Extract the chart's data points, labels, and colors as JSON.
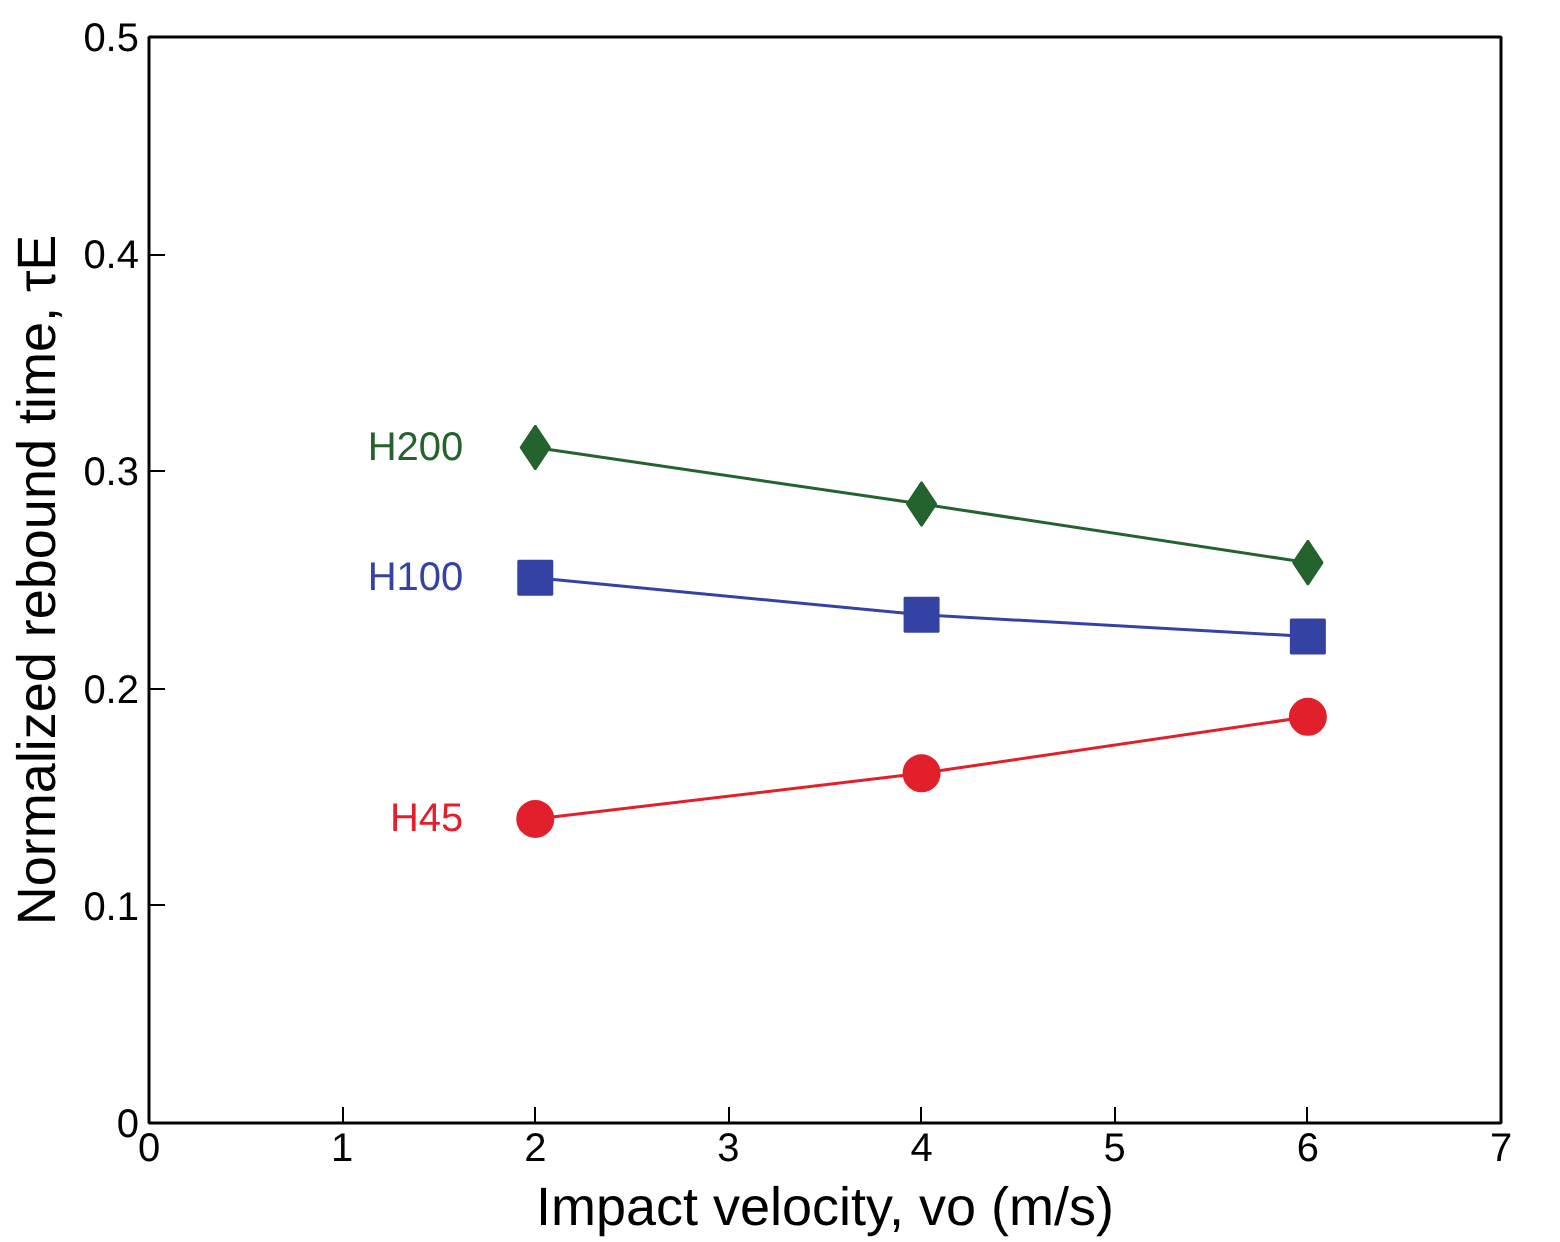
{
  "chart_data": {
    "type": "line",
    "xlabel": "Impact velocity, vo (m/s)",
    "ylabel": "Normalized rebound time, τE",
    "x": [
      2,
      4,
      6
    ],
    "series": [
      {
        "name": "H200",
        "color": "#24622e",
        "values": [
          0.311,
          0.285,
          0.258
        ],
        "marker": "diamond"
      },
      {
        "name": "H100",
        "color": "#3443a3",
        "values": [
          0.251,
          0.234,
          0.224
        ],
        "marker": "square"
      },
      {
        "name": "H45",
        "color": "#e2202b",
        "values": [
          0.14,
          0.161,
          0.187
        ],
        "marker": "circle"
      }
    ],
    "xlim": [
      0,
      7
    ],
    "xticks": [
      0,
      1,
      2,
      3,
      4,
      5,
      6,
      7
    ],
    "ylim": [
      0,
      0.5
    ],
    "yticks": [
      0,
      0.1,
      0.2,
      0.3,
      0.4,
      0.5
    ],
    "grid": false
  }
}
